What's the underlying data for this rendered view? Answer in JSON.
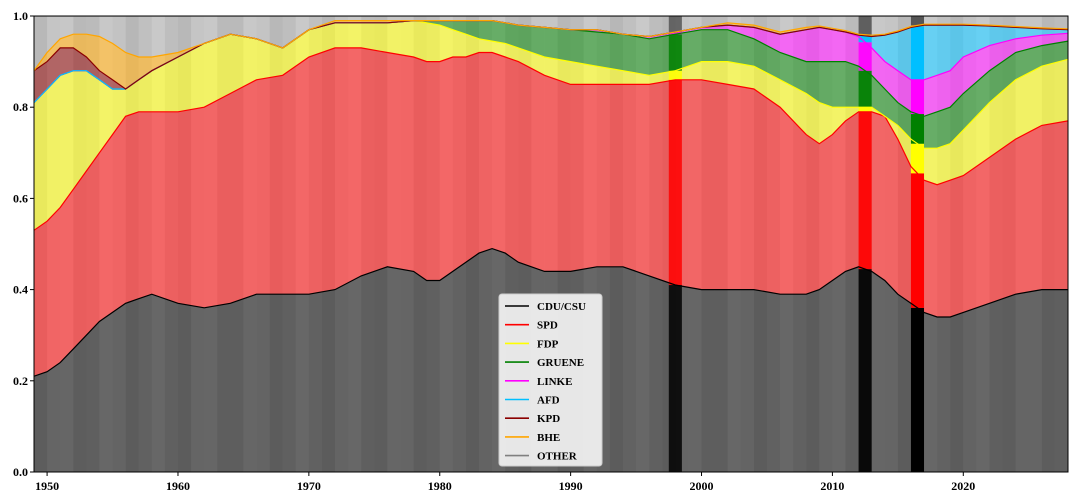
{
  "chart_data": {
    "type": "area",
    "title": "",
    "xlabel": "",
    "ylabel": "",
    "xlim": [
      1949,
      2028
    ],
    "ylim": [
      0,
      1.0
    ],
    "grid": false,
    "legend_position": "bottom-center",
    "x_ticks": [
      "1950",
      "1960",
      "1970",
      "1980",
      "1990",
      "2000",
      "2010",
      "2020"
    ],
    "y_ticks": [
      "0.0",
      "0.2",
      "0.4",
      "0.6",
      "0.8",
      "1.0"
    ],
    "x": [
      1949,
      1950,
      1951,
      1952,
      1953,
      1954,
      1955,
      1956,
      1957,
      1958,
      1960,
      1962,
      1964,
      1966,
      1968,
      1970,
      1972,
      1974,
      1976,
      1978,
      1979,
      1980,
      1981,
      1982,
      1983,
      1984,
      1985,
      1986,
      1988,
      1990,
      1992,
      1994,
      1996,
      1998,
      2000,
      2002,
      2004,
      2006,
      2008,
      2009,
      2010,
      2011,
      2012,
      2013,
      2014,
      2015,
      2016,
      2017,
      2018,
      2019,
      2020,
      2022,
      2024,
      2026,
      2028
    ],
    "series": [
      {
        "name": "CDU/CSU",
        "color": "#000000",
        "cumulative": [
          0.21,
          0.22,
          0.24,
          0.27,
          0.3,
          0.33,
          0.35,
          0.37,
          0.38,
          0.39,
          0.37,
          0.36,
          0.37,
          0.39,
          0.39,
          0.39,
          0.4,
          0.43,
          0.45,
          0.44,
          0.42,
          0.42,
          0.44,
          0.46,
          0.48,
          0.49,
          0.48,
          0.46,
          0.44,
          0.44,
          0.45,
          0.45,
          0.43,
          0.41,
          0.4,
          0.4,
          0.4,
          0.39,
          0.39,
          0.4,
          0.42,
          0.44,
          0.45,
          0.44,
          0.42,
          0.39,
          0.37,
          0.35,
          0.34,
          0.34,
          0.35,
          0.37,
          0.39,
          0.4,
          0.4
        ]
      },
      {
        "name": "SPD",
        "color": "#ff0000",
        "cumulative": [
          0.53,
          0.55,
          0.58,
          0.62,
          0.66,
          0.7,
          0.74,
          0.78,
          0.79,
          0.79,
          0.79,
          0.8,
          0.83,
          0.86,
          0.87,
          0.91,
          0.93,
          0.93,
          0.92,
          0.91,
          0.9,
          0.9,
          0.91,
          0.91,
          0.92,
          0.92,
          0.91,
          0.9,
          0.87,
          0.85,
          0.85,
          0.85,
          0.85,
          0.86,
          0.86,
          0.85,
          0.84,
          0.8,
          0.74,
          0.72,
          0.74,
          0.77,
          0.79,
          0.79,
          0.78,
          0.73,
          0.67,
          0.64,
          0.63,
          0.64,
          0.65,
          0.69,
          0.73,
          0.76,
          0.77
        ]
      },
      {
        "name": "FDP",
        "color": "#ffff00",
        "cumulative": [
          0.81,
          0.84,
          0.87,
          0.88,
          0.88,
          0.86,
          0.84,
          0.84,
          0.86,
          0.88,
          0.91,
          0.94,
          0.96,
          0.95,
          0.93,
          0.97,
          0.985,
          0.985,
          0.985,
          0.99,
          0.985,
          0.98,
          0.97,
          0.96,
          0.95,
          0.945,
          0.94,
          0.93,
          0.91,
          0.9,
          0.89,
          0.88,
          0.87,
          0.88,
          0.9,
          0.9,
          0.89,
          0.86,
          0.83,
          0.81,
          0.8,
          0.8,
          0.8,
          0.8,
          0.78,
          0.76,
          0.73,
          0.71,
          0.71,
          0.72,
          0.75,
          0.81,
          0.86,
          0.89,
          0.905
        ]
      },
      {
        "name": "GRUENE",
        "color": "#008000",
        "cumulative": [
          0.81,
          0.84,
          0.87,
          0.88,
          0.88,
          0.86,
          0.84,
          0.84,
          0.86,
          0.88,
          0.91,
          0.94,
          0.96,
          0.95,
          0.93,
          0.97,
          0.985,
          0.985,
          0.985,
          0.99,
          0.99,
          0.99,
          0.99,
          0.99,
          0.99,
          0.99,
          0.985,
          0.98,
          0.975,
          0.97,
          0.965,
          0.96,
          0.95,
          0.96,
          0.97,
          0.97,
          0.95,
          0.92,
          0.9,
          0.9,
          0.9,
          0.9,
          0.89,
          0.87,
          0.84,
          0.81,
          0.79,
          0.78,
          0.79,
          0.8,
          0.83,
          0.88,
          0.92,
          0.935,
          0.945
        ]
      },
      {
        "name": "LINKE",
        "color": "#ff00ff",
        "cumulative": [
          0.81,
          0.84,
          0.87,
          0.88,
          0.88,
          0.86,
          0.84,
          0.84,
          0.86,
          0.88,
          0.91,
          0.94,
          0.96,
          0.95,
          0.93,
          0.97,
          0.985,
          0.985,
          0.985,
          0.99,
          0.99,
          0.99,
          0.99,
          0.99,
          0.99,
          0.99,
          0.985,
          0.98,
          0.975,
          0.97,
          0.97,
          0.96,
          0.955,
          0.965,
          0.975,
          0.98,
          0.975,
          0.96,
          0.97,
          0.975,
          0.97,
          0.965,
          0.955,
          0.93,
          0.9,
          0.88,
          0.86,
          0.86,
          0.87,
          0.88,
          0.91,
          0.935,
          0.95,
          0.958,
          0.962
        ]
      },
      {
        "name": "AFD",
        "color": "#00bfff",
        "cumulative": [
          0.81,
          0.84,
          0.87,
          0.88,
          0.88,
          0.86,
          0.84,
          0.84,
          0.86,
          0.88,
          0.91,
          0.94,
          0.96,
          0.95,
          0.93,
          0.97,
          0.985,
          0.985,
          0.985,
          0.99,
          0.99,
          0.99,
          0.99,
          0.99,
          0.99,
          0.99,
          0.985,
          0.98,
          0.975,
          0.97,
          0.97,
          0.96,
          0.955,
          0.965,
          0.975,
          0.98,
          0.975,
          0.96,
          0.97,
          0.975,
          0.97,
          0.965,
          0.958,
          0.955,
          0.958,
          0.965,
          0.975,
          0.98,
          0.98,
          0.98,
          0.98,
          0.978,
          0.975,
          0.972,
          0.97
        ]
      },
      {
        "name": "KPD",
        "color": "#8b0000",
        "cumulative": [
          0.88,
          0.9,
          0.93,
          0.93,
          0.91,
          0.88,
          0.86,
          0.84,
          0.86,
          0.88,
          0.91,
          0.94,
          0.96,
          0.95,
          0.93,
          0.97,
          0.985,
          0.985,
          0.985,
          0.99,
          0.99,
          0.99,
          0.99,
          0.99,
          0.99,
          0.99,
          0.985,
          0.98,
          0.975,
          0.97,
          0.97,
          0.96,
          0.955,
          0.965,
          0.975,
          0.98,
          0.975,
          0.96,
          0.97,
          0.975,
          0.97,
          0.965,
          0.958,
          0.955,
          0.958,
          0.965,
          0.975,
          0.98,
          0.98,
          0.98,
          0.98,
          0.978,
          0.975,
          0.972,
          0.97
        ]
      },
      {
        "name": "BHE",
        "color": "#ffa500",
        "cumulative": [
          0.88,
          0.92,
          0.95,
          0.96,
          0.96,
          0.955,
          0.94,
          0.92,
          0.91,
          0.91,
          0.92,
          0.94,
          0.96,
          0.95,
          0.93,
          0.97,
          0.99,
          0.99,
          0.99,
          0.99,
          0.99,
          0.99,
          0.99,
          0.99,
          0.99,
          0.99,
          0.985,
          0.98,
          0.975,
          0.97,
          0.97,
          0.96,
          0.955,
          0.965,
          0.975,
          0.985,
          0.98,
          0.965,
          0.975,
          0.978,
          0.973,
          0.968,
          0.96,
          0.958,
          0.96,
          0.967,
          0.977,
          0.982,
          0.982,
          0.982,
          0.982,
          0.98,
          0.977,
          0.974,
          0.972
        ]
      },
      {
        "name": "OTHER",
        "color": "#808080",
        "cumulative": [
          1.0,
          1.0,
          1.0,
          1.0,
          1.0,
          1.0,
          1.0,
          1.0,
          1.0,
          1.0,
          1.0,
          1.0,
          1.0,
          1.0,
          1.0,
          1.0,
          1.0,
          1.0,
          1.0,
          1.0,
          1.0,
          1.0,
          1.0,
          1.0,
          1.0,
          1.0,
          1.0,
          1.0,
          1.0,
          1.0,
          1.0,
          1.0,
          1.0,
          1.0,
          1.0,
          1.0,
          1.0,
          1.0,
          1.0,
          1.0,
          1.0,
          1.0,
          1.0,
          1.0,
          1.0,
          1.0,
          1.0,
          1.0,
          1.0,
          1.0,
          1.0,
          1.0,
          1.0,
          1.0,
          1.0
        ]
      }
    ],
    "legend": [
      "CDU/CSU",
      "SPD",
      "FDP",
      "GRUENE",
      "LINKE",
      "AFD",
      "KPD",
      "BHE",
      "OTHER"
    ],
    "highlight_years": [
      {
        "year": 1998,
        "opacity": 0.85
      },
      {
        "year": 2012.5,
        "opacity": 0.9
      },
      {
        "year": 2016.5,
        "opacity": 1.0
      }
    ]
  }
}
